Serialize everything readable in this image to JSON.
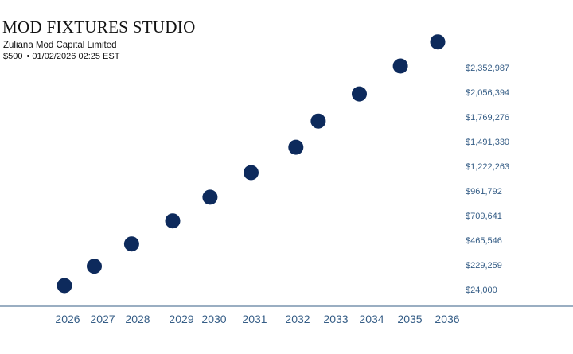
{
  "header": {
    "title": "MOD FIXTURES STUDIO",
    "subtitle": "Zuliana Mod Capital Limited",
    "amount": "$500",
    "separator": "•",
    "datetime": "01/02/2026 02:25 EST"
  },
  "colors": {
    "marker": "#0d2a5c",
    "axis_line": "#355d86",
    "label": "#355d86"
  },
  "chart_data": {
    "type": "scatter",
    "title": "",
    "xlabel": "",
    "ylabel": "",
    "grid": false,
    "legend": "none",
    "y_axis_side": "right",
    "x_tick_labels": [
      "2026",
      "2027",
      "2028",
      "2029",
      "2030",
      "2031",
      "2032",
      "2033",
      "2034",
      "2035",
      "2036"
    ],
    "y_tick_labels": [
      "$24,000",
      "$229,259",
      "$465,546",
      "$709,641",
      "$961,792",
      "$1,222,263",
      "$1,491,330",
      "$1,769,276",
      "$2,056,394",
      "$2,352,987"
    ],
    "ylim": [
      24000,
      2352987
    ],
    "points": [
      {
        "x": 2026.0,
        "y": 24000
      },
      {
        "x": 2026.8,
        "y": 229259
      },
      {
        "x": 2027.8,
        "y": 465546
      },
      {
        "x": 2028.9,
        "y": 709641
      },
      {
        "x": 2029.9,
        "y": 961792
      },
      {
        "x": 2031.0,
        "y": 1222263
      },
      {
        "x": 2032.2,
        "y": 1491330
      },
      {
        "x": 2032.8,
        "y": 1769276
      },
      {
        "x": 2033.9,
        "y": 2056394
      },
      {
        "x": 2035.0,
        "y": 2352987
      },
      {
        "x": 2036.0,
        "y": 2609000
      }
    ]
  }
}
